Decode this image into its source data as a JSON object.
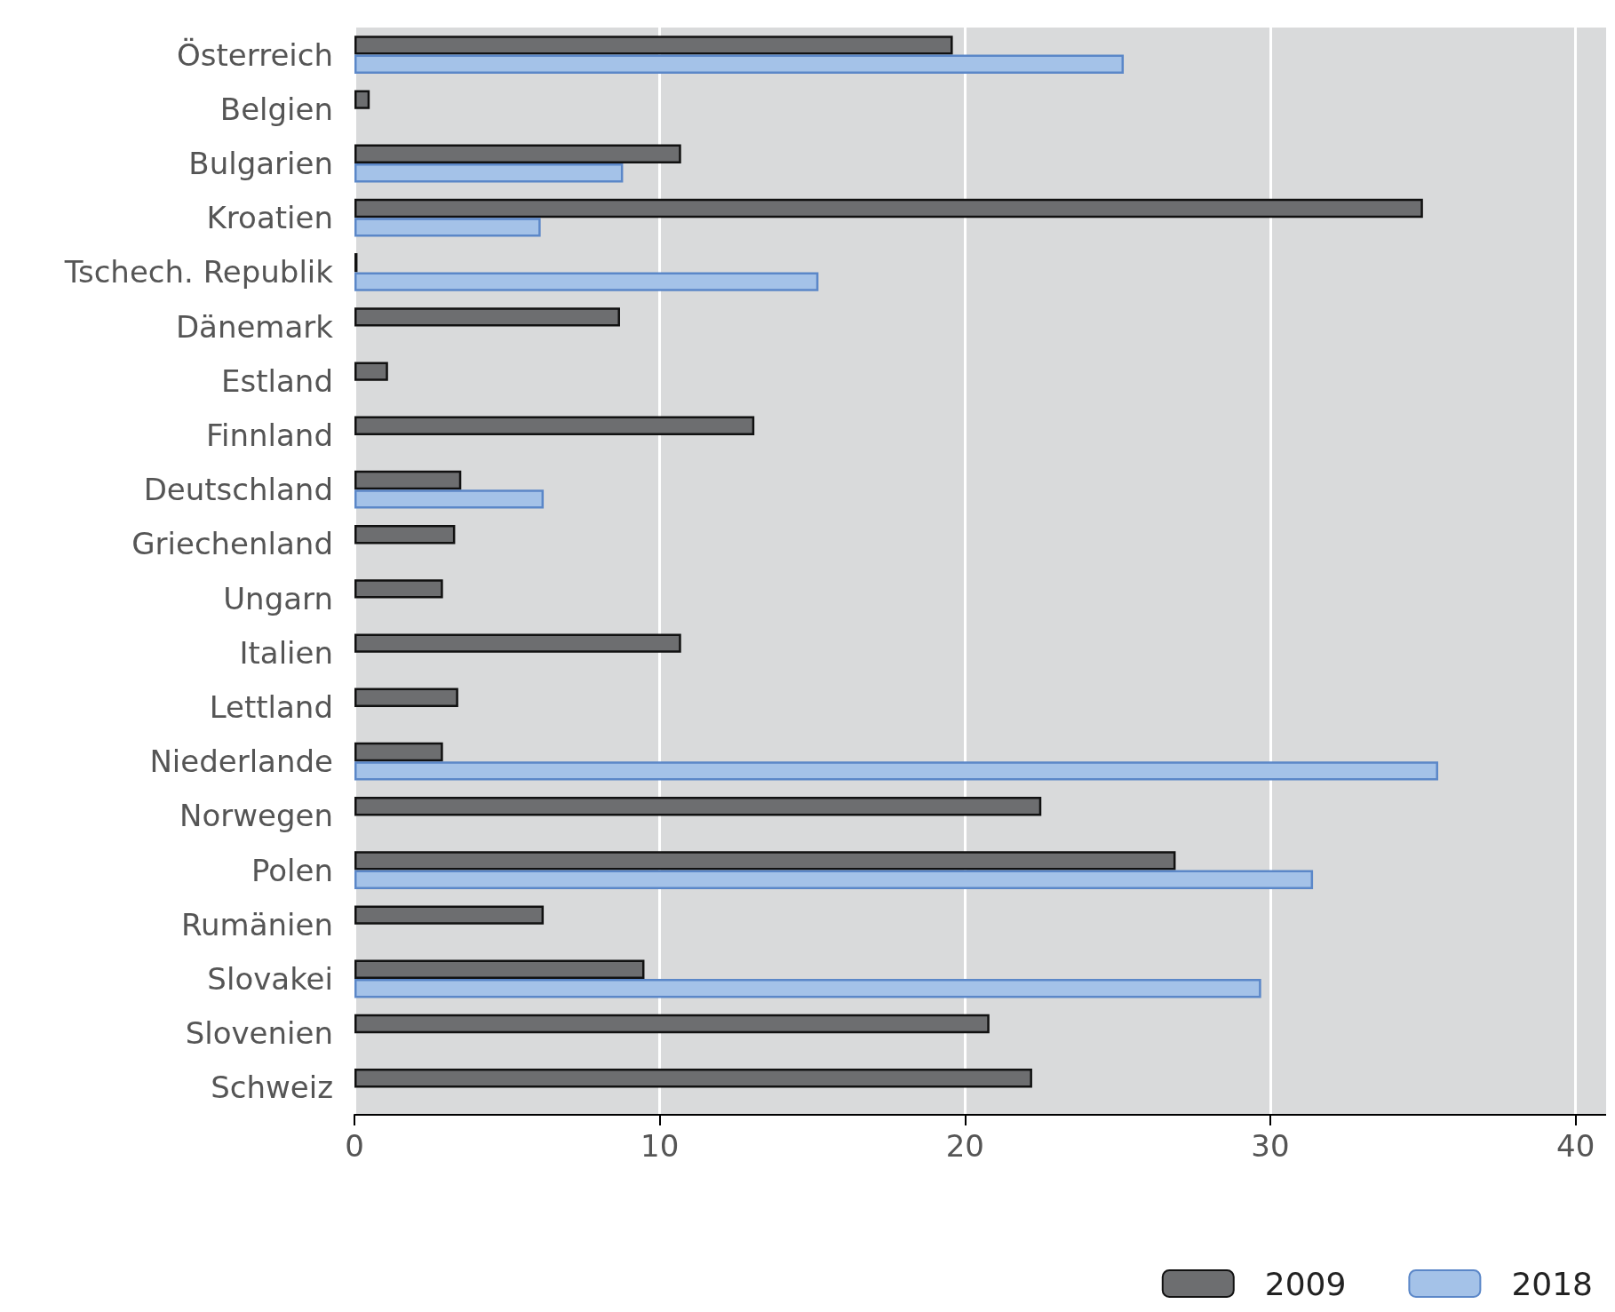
{
  "chart_data": {
    "type": "bar",
    "orientation": "horizontal",
    "categories": [
      "Österreich",
      "Belgien",
      "Bulgarien",
      "Kroatien",
      "Tschech. Republik",
      "Dänemark",
      "Estland",
      "Finnland",
      "Deutschland",
      "Griechenland",
      "Ungarn",
      "Italien",
      "Lettland",
      "Niederlande",
      "Norwegen",
      "Polen",
      "Rumänien",
      "Slovakei",
      "Slovenien",
      "Schweiz"
    ],
    "series": [
      {
        "name": "2009",
        "color": "#6d6e70",
        "values": [
          19.6,
          0.5,
          10.7,
          35.0,
          0.1,
          8.7,
          1.1,
          13.1,
          3.5,
          3.3,
          2.9,
          10.7,
          3.4,
          2.9,
          22.5,
          26.9,
          6.2,
          9.5,
          20.8,
          22.2
        ]
      },
      {
        "name": "2018",
        "color": "#a4c2e8",
        "values": [
          25.2,
          null,
          8.8,
          6.1,
          15.2,
          null,
          null,
          null,
          6.2,
          null,
          null,
          null,
          null,
          35.5,
          null,
          31.4,
          null,
          29.7,
          null,
          null
        ]
      }
    ],
    "xlim": [
      0,
      41
    ],
    "xticks": [
      0,
      10,
      20,
      30,
      40
    ],
    "grid": "x",
    "legend": "bottom right"
  }
}
